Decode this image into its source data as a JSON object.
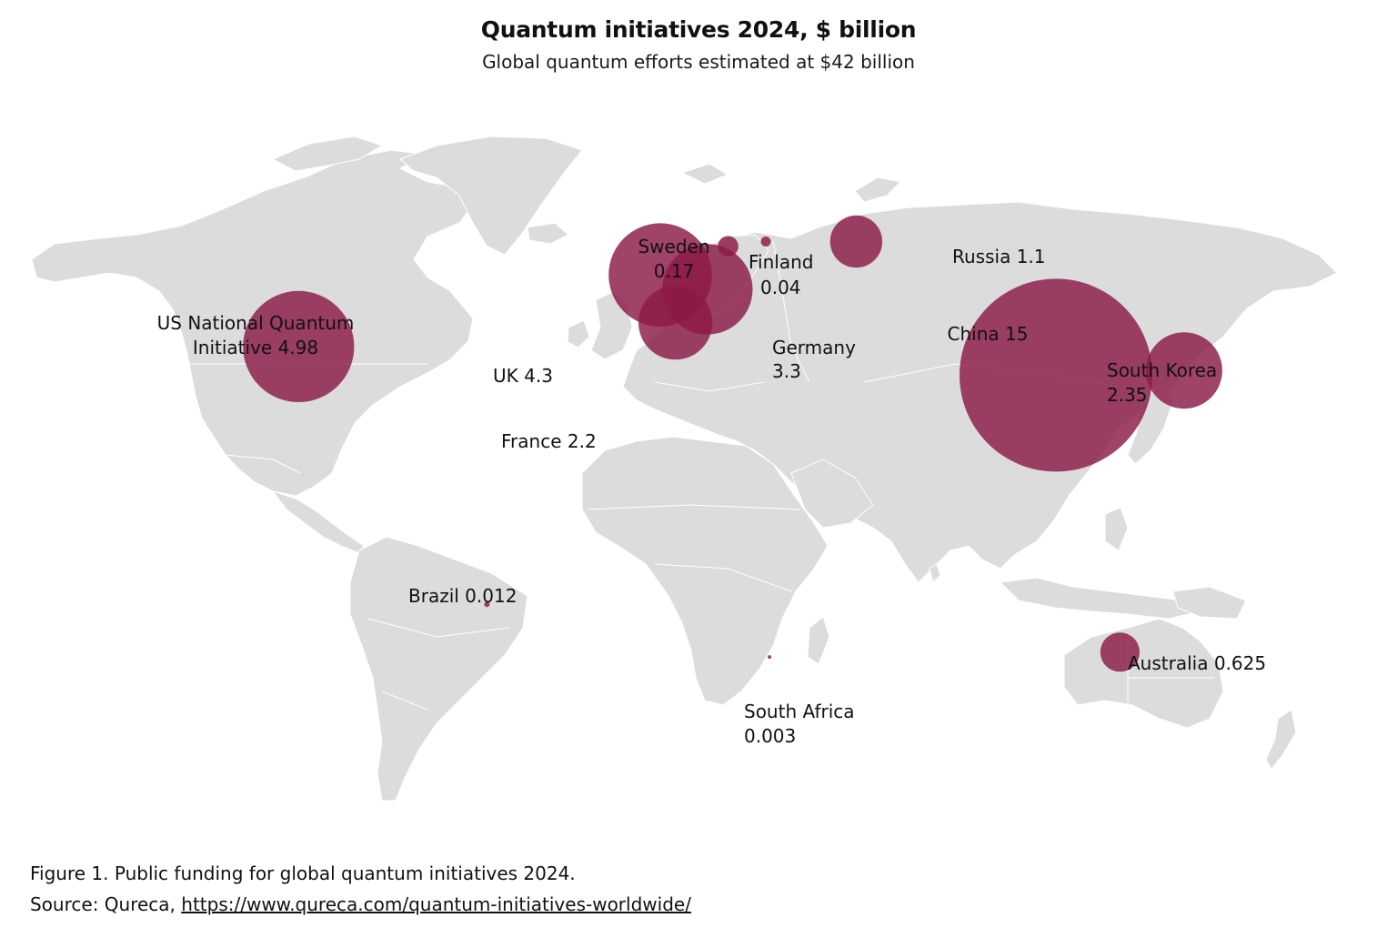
{
  "header": {
    "title": "Quantum initiatives 2024, $ billion",
    "subtitle": "Global quantum efforts estimated at $42 billion"
  },
  "colors": {
    "bubble": "#8b1a47",
    "land": "#dcdcdc",
    "background": "#ffffff"
  },
  "bubbles": [
    {
      "id": "usa",
      "name": "US National Quantum",
      "name2": "Initiative",
      "value": 4.98,
      "value_label": "4.98",
      "lon": -98,
      "lat": 39
    },
    {
      "id": "uk",
      "name": "UK",
      "value": 4.3,
      "value_label": "4.3",
      "lon": -2,
      "lat": 54
    },
    {
      "id": "germany",
      "name": "Germany",
      "value": 3.3,
      "value_label": "3.3",
      "lon": 10.5,
      "lat": 51
    },
    {
      "id": "france",
      "name": "France",
      "value": 2.2,
      "value_label": "2.2",
      "lon": 2,
      "lat": 44
    },
    {
      "id": "sweden",
      "name": "Sweden",
      "value": 0.17,
      "value_label": "0.17",
      "lon": 16,
      "lat": 60
    },
    {
      "id": "finland",
      "name": "Finland",
      "value": 0.04,
      "value_label": "0.04",
      "lon": 26,
      "lat": 61
    },
    {
      "id": "russia",
      "name": "Russia",
      "value": 1.1,
      "value_label": "1.1",
      "lon": 50,
      "lat": 61
    },
    {
      "id": "china",
      "name": "China",
      "value": 15,
      "value_label": "15",
      "lon": 103,
      "lat": 33
    },
    {
      "id": "southkorea",
      "name": "South Korea",
      "value": 2.35,
      "value_label": "2.35",
      "lon": 137,
      "lat": 34
    },
    {
      "id": "australia",
      "name": "Australia",
      "value": 0.625,
      "value_label": "0.625",
      "lon": 120,
      "lat": -25
    },
    {
      "id": "brazil",
      "name": "Brazil",
      "value": 0.012,
      "value_label": "0.012",
      "lon": -48,
      "lat": -15
    },
    {
      "id": "southafrica",
      "name": "South Africa",
      "value": 0.003,
      "value_label": "0.003",
      "lon": 27,
      "lat": -26
    }
  ],
  "caption": {
    "figure": "Figure 1. Public funding for global quantum initiatives 2024.",
    "source_prefix": "Source: Qureca, ",
    "source_link": "https://www.qureca.com/quantum-initiatives-worldwide/"
  }
}
